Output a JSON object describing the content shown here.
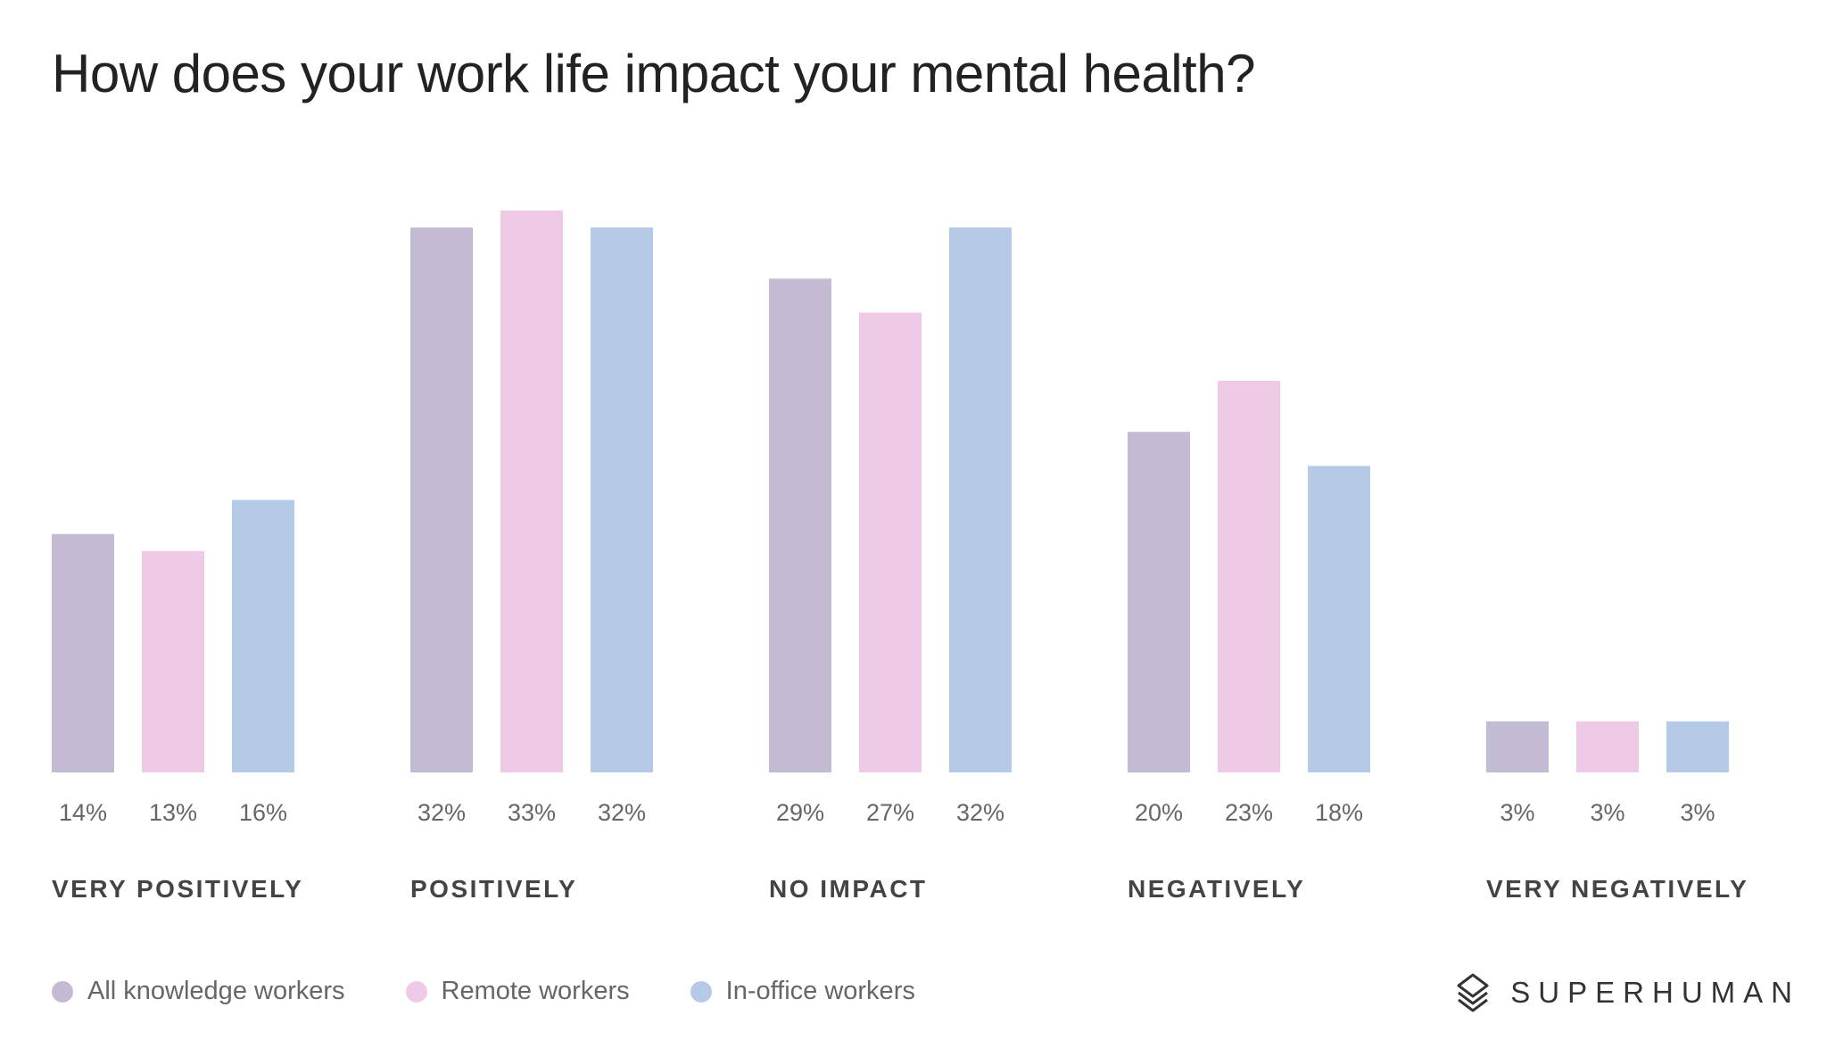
{
  "chart_data": {
    "type": "bar",
    "title": "How does your work life impact your mental health?",
    "categories": [
      "VERY POSITIVELY",
      "POSITIVELY",
      "NO IMPACT",
      "NEGATIVELY",
      "VERY NEGATIVELY"
    ],
    "series": [
      {
        "name": "All knowledge workers",
        "values": [
          14,
          32,
          29,
          20,
          3
        ],
        "labels": [
          "14%",
          "32%",
          "29%",
          "20%",
          "3%"
        ],
        "color": "#c3bad4"
      },
      {
        "name": "Remote workers",
        "values": [
          13,
          33,
          27,
          23,
          3
        ],
        "labels": [
          "13%",
          "33%",
          "27%",
          "23%",
          "3%"
        ],
        "color": "#efcae6"
      },
      {
        "name": "In-office workers",
        "values": [
          16,
          32,
          32,
          18,
          3
        ],
        "labels": [
          "16%",
          "32%",
          "32%",
          "18%",
          "3%"
        ],
        "color": "#b4cae6"
      }
    ],
    "xlabel": "",
    "ylabel": "",
    "ylim": [
      0,
      33
    ],
    "grid": false,
    "legend": "bottom-left",
    "value_unit": "%"
  },
  "brand": {
    "name": "SUPERHUMAN",
    "icon": "superhuman-logo-icon"
  }
}
